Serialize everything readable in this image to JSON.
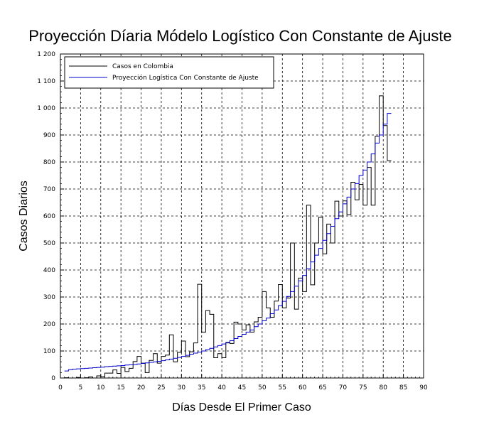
{
  "chart_data": {
    "type": "line",
    "title": "Proyección Díaria Módelo Logístico Con Constante de Ajuste",
    "xlabel": "Días Desde El Primer Caso",
    "ylabel": "Casos Diarios",
    "xlim": [
      0,
      90
    ],
    "ylim": [
      0,
      1200
    ],
    "x_ticks": [
      0,
      5,
      10,
      15,
      20,
      25,
      30,
      35,
      40,
      45,
      50,
      55,
      60,
      65,
      70,
      75,
      80,
      85,
      90
    ],
    "x_tick_labels": [
      "0",
      "5",
      "10",
      "15",
      "20",
      "25",
      "30",
      "35",
      "40",
      "45",
      "50",
      "55",
      "60",
      "65",
      "70",
      "75",
      "80",
      "85",
      "90"
    ],
    "y_ticks": [
      0,
      100,
      200,
      300,
      400,
      500,
      600,
      700,
      800,
      900,
      1000,
      1100,
      1200
    ],
    "y_tick_labels": [
      "0",
      "100",
      "200",
      "300",
      "400",
      "500",
      "600",
      "700",
      "800",
      "900",
      "1 000",
      "1 100",
      "1 200"
    ],
    "grid": true,
    "step": true,
    "legend_position": "top-left",
    "series": [
      {
        "name": "Casos en Colombia",
        "color": "#000000",
        "x": [
          1,
          2,
          3,
          4,
          5,
          6,
          7,
          8,
          9,
          10,
          11,
          12,
          13,
          14,
          15,
          16,
          17,
          18,
          19,
          20,
          21,
          22,
          23,
          24,
          25,
          26,
          27,
          28,
          29,
          30,
          31,
          32,
          33,
          34,
          35,
          36,
          37,
          38,
          39,
          40,
          41,
          42,
          43,
          44,
          45,
          46,
          47,
          48,
          49,
          50,
          51,
          52,
          53,
          54,
          55,
          56,
          57,
          58,
          59,
          60,
          61,
          62,
          63,
          64,
          65,
          66,
          67,
          68,
          69,
          70,
          71,
          72,
          73,
          74,
          75,
          76,
          77,
          78,
          79,
          80,
          81
        ],
        "values": [
          1,
          0,
          0,
          2,
          0,
          1,
          4,
          0,
          8,
          5,
          18,
          18,
          30,
          17,
          39,
          24,
          36,
          61,
          80,
          55,
          20,
          65,
          90,
          55,
          80,
          85,
          160,
          60,
          95,
          137,
          79,
          97,
          130,
          347,
          170,
          250,
          236,
          75,
          90,
          75,
          130,
          128,
          207,
          200,
          178,
          197,
          170,
          208,
          225,
          320,
          260,
          225,
          285,
          346,
          260,
          296,
          500,
          255,
          370,
          320,
          640,
          345,
          500,
          595,
          460,
          570,
          500,
          655,
          600,
          656,
          605,
          725,
          660,
          717,
          640,
          780,
          640,
          895,
          1045,
          935,
          805
        ]
      },
      {
        "name": "Proyección Logística Con Constante de Ajuste",
        "color": "#0000cc",
        "x": [
          1,
          2,
          3,
          4,
          5,
          6,
          7,
          8,
          9,
          10,
          11,
          12,
          13,
          14,
          15,
          16,
          17,
          18,
          19,
          20,
          21,
          22,
          23,
          24,
          25,
          26,
          27,
          28,
          29,
          30,
          31,
          32,
          33,
          34,
          35,
          36,
          37,
          38,
          39,
          40,
          41,
          42,
          43,
          44,
          45,
          46,
          47,
          48,
          49,
          50,
          51,
          52,
          53,
          54,
          55,
          56,
          57,
          58,
          59,
          60,
          61,
          62,
          63,
          64,
          65,
          66,
          67,
          68,
          69,
          70,
          71,
          72,
          73,
          74,
          75,
          76,
          77,
          78,
          79,
          80,
          81
        ],
        "values": [
          26,
          31,
          33,
          34,
          35,
          36,
          37,
          38,
          39,
          40,
          42,
          43,
          44,
          45,
          46,
          48,
          49,
          50,
          52,
          54,
          56,
          58,
          60,
          62,
          64,
          67,
          70,
          73,
          76,
          80,
          84,
          88,
          92,
          96,
          100,
          105,
          110,
          115,
          120,
          126,
          132,
          138,
          146,
          154,
          162,
          170,
          178,
          190,
          200,
          212,
          222,
          238,
          252,
          268,
          284,
          302,
          320,
          340,
          360,
          380,
          405,
          430,
          455,
          480,
          510,
          535,
          562,
          590,
          615,
          645,
          670,
          700,
          720,
          750,
          770,
          800,
          830,
          870,
          900,
          940,
          980
        ]
      }
    ]
  }
}
